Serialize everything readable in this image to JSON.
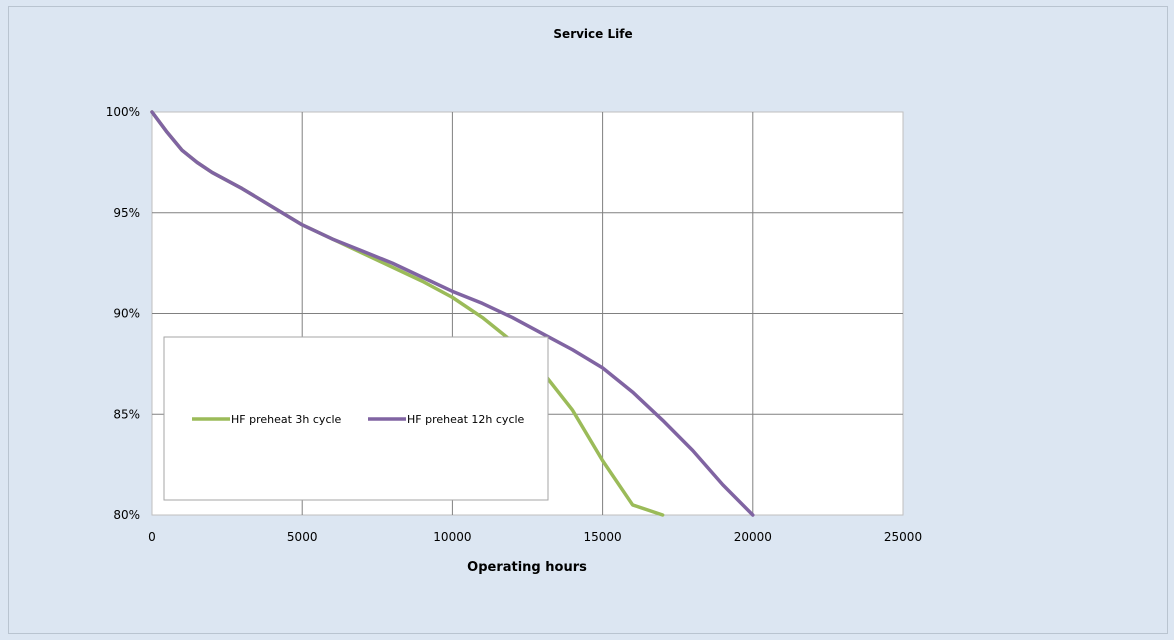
{
  "chart_data": {
    "type": "line",
    "title": "Service Life",
    "xlabel": "Operating hours",
    "ylabel": "",
    "xlim": [
      0,
      25000
    ],
    "ylim": [
      0.8,
      1.0
    ],
    "xticks": [
      0,
      5000,
      10000,
      15000,
      20000,
      25000
    ],
    "yticks": [
      0.8,
      0.85,
      0.9,
      0.95,
      1.0
    ],
    "xtick_labels": [
      "0",
      "5000",
      "10000",
      "15000",
      "20000",
      "25000"
    ],
    "ytick_labels": [
      "80%",
      "85%",
      "90%",
      "95%",
      "100%"
    ],
    "grid": true,
    "legend_position": "bottom-left",
    "series": [
      {
        "name": "HF preheat 3h cycle",
        "color": "#9bbb59",
        "x": [
          0,
          500,
          1000,
          1500,
          2000,
          3000,
          4000,
          5000,
          6000,
          7000,
          8000,
          9000,
          10000,
          11000,
          12000,
          13000,
          14000,
          15000,
          16000,
          17000
        ],
        "y": [
          1.0,
          0.99,
          0.981,
          0.975,
          0.97,
          0.962,
          0.953,
          0.944,
          0.937,
          0.93,
          0.923,
          0.916,
          0.908,
          0.898,
          0.886,
          0.871,
          0.852,
          0.827,
          0.805,
          0.8
        ]
      },
      {
        "name": "HF preheat 12h cycle",
        "color": "#8064a2",
        "x": [
          0,
          500,
          1000,
          1500,
          2000,
          3000,
          4000,
          5000,
          6000,
          7000,
          8000,
          9000,
          10000,
          11000,
          12000,
          13000,
          14000,
          15000,
          16000,
          17000,
          18000,
          19000,
          20000
        ],
        "y": [
          1.0,
          0.99,
          0.981,
          0.975,
          0.97,
          0.962,
          0.953,
          0.944,
          0.937,
          0.931,
          0.925,
          0.918,
          0.911,
          0.905,
          0.898,
          0.89,
          0.882,
          0.873,
          0.861,
          0.847,
          0.832,
          0.815,
          0.8
        ]
      }
    ]
  }
}
